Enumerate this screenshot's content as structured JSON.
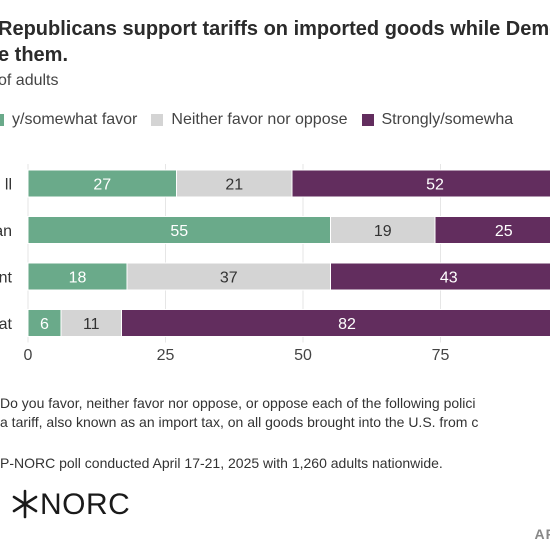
{
  "header": {
    "title_line1": "Republicans support tariffs on imported goods while Demo",
    "title_line2": "e them.",
    "subtitle": "of adults"
  },
  "legend": {
    "items": [
      {
        "label": "y/somewhat favor",
        "color": "#6aaa8a"
      },
      {
        "label": "Neither favor nor oppose",
        "color": "#d4d4d4"
      },
      {
        "label": "Strongly/somewha",
        "color": "#622d5e"
      }
    ]
  },
  "chart_data": {
    "type": "bar",
    "orientation": "horizontal",
    "stacked": true,
    "categories": [
      "ll",
      "an",
      "nt",
      "at"
    ],
    "series": [
      {
        "name": "y/somewhat favor",
        "color": "#6aaa8a",
        "text_color": "#ffffff",
        "values": [
          27,
          55,
          18,
          6
        ]
      },
      {
        "name": "Neither favor nor oppose",
        "color": "#d4d4d4",
        "text_color": "#333333",
        "values": [
          21,
          19,
          37,
          11
        ]
      },
      {
        "name": "Strongly/somewha",
        "color": "#622d5e",
        "text_color": "#ffffff",
        "values": [
          52,
          25,
          43,
          82
        ]
      }
    ],
    "xticks": [
      0,
      25,
      50,
      75
    ],
    "xlim": [
      0,
      100
    ],
    "grid": true
  },
  "notes": {
    "question_line1": "Do you favor, neither favor nor oppose, or oppose each of the following polici",
    "question_line2": "a tariff, also known as an import tax, on all goods brought into the U.S. from c",
    "source": "P-NORC poll conducted April 17-21, 2025 with 1,260 adults nationwide."
  },
  "logo": {
    "icon": "norc-star-icon",
    "text": "NORC"
  },
  "credit": "AP"
}
